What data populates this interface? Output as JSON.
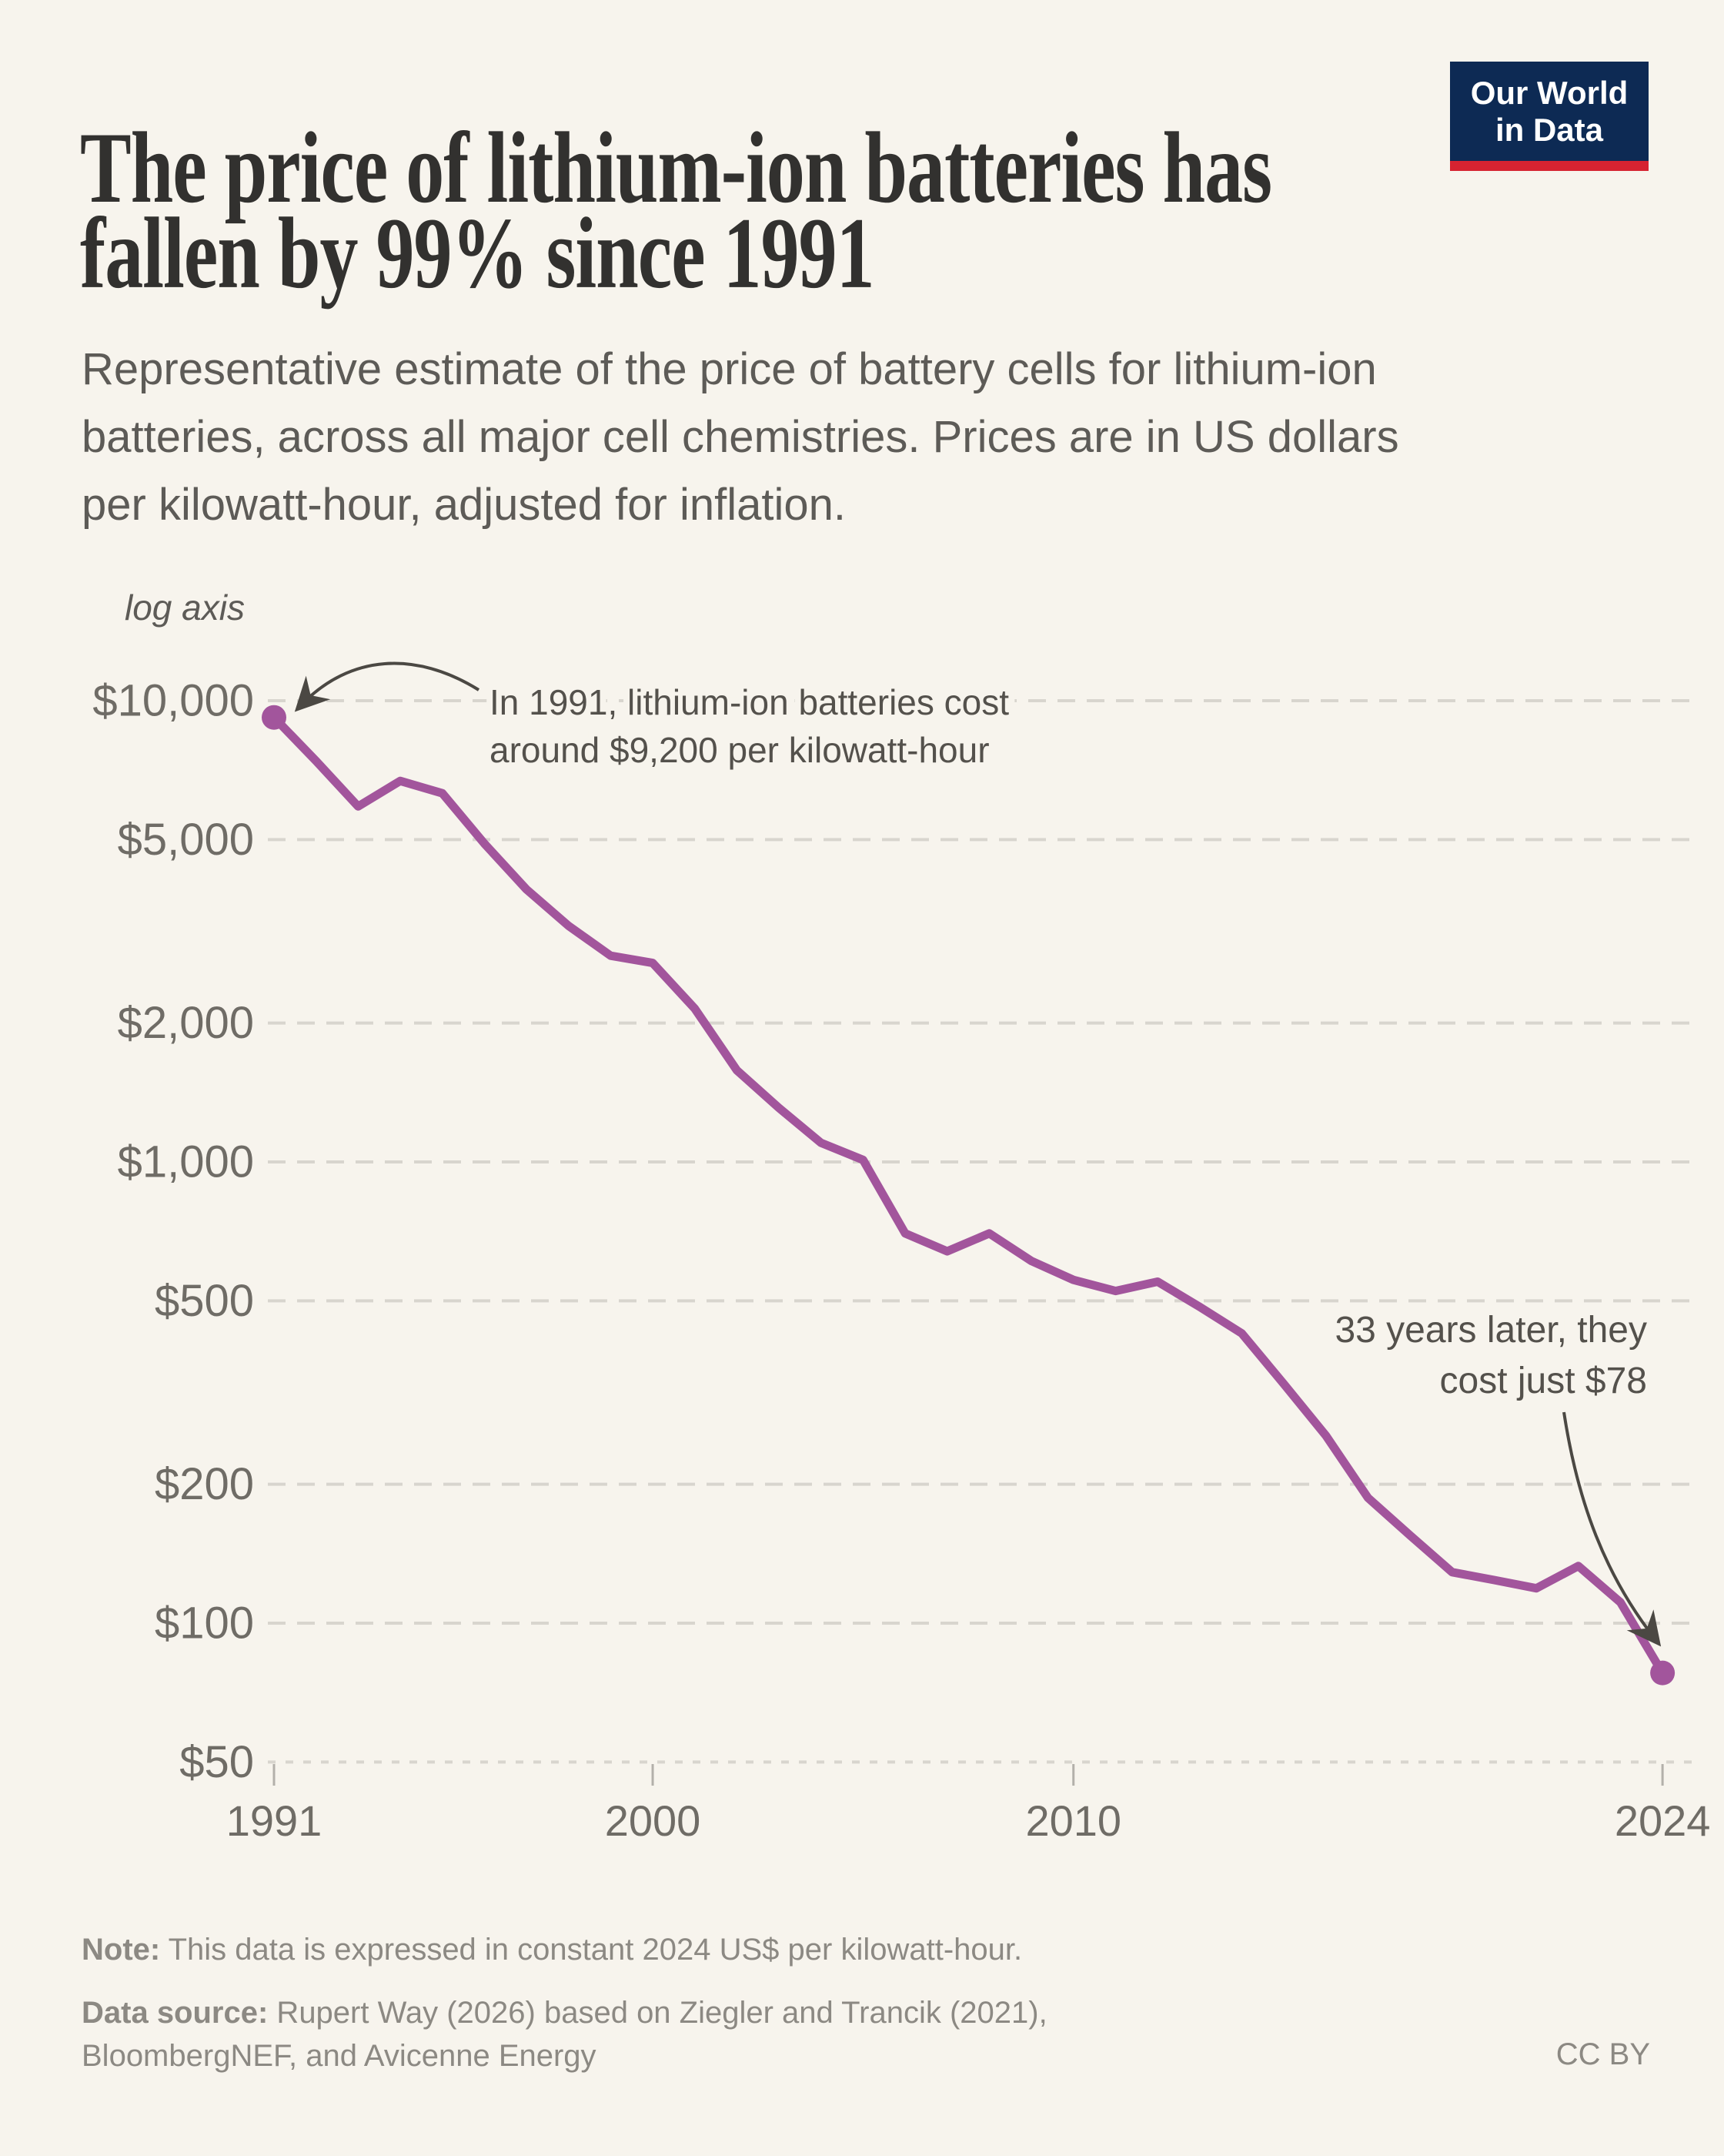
{
  "header": {
    "title": "The price of lithium-ion batteries has fallen by 99% since 1991",
    "subtitle": "Representative estimate of the price of battery cells for lithium-ion batteries, across all major cell chemistries. Prices are in US dollars per kilowatt-hour, adjusted for inflation."
  },
  "logo": {
    "line1": "Our World",
    "line2": "in Data",
    "bg_color": "#0D2A54",
    "stripe_color": "#D62331"
  },
  "chart_data": {
    "type": "line",
    "title": "The price of lithium-ion batteries has fallen by 99% since 1991",
    "ylabel": "US$ per kilowatt-hour",
    "xlabel": "",
    "log_scale": true,
    "axis_note": "log axis",
    "grid": true,
    "xlim": [
      1991,
      2024
    ],
    "ylim": [
      50,
      10000
    ],
    "x_ticks": [
      1991,
      2000,
      2010,
      2024
    ],
    "x_tick_labels": [
      "1991",
      "2000",
      "2010",
      "2024"
    ],
    "y_ticks": [
      10000,
      5000,
      2000,
      1000,
      500,
      200,
      100,
      50
    ],
    "y_tick_labels": [
      "$10,000",
      "$5,000",
      "$2,000",
      "$1,000",
      "$500",
      "$200",
      "$100",
      "$50"
    ],
    "series": [
      {
        "name": "Price of lithium-ion battery cells",
        "color": "#A2559C",
        "points": [
          [
            1991,
            9200
          ],
          [
            1992,
            7400
          ],
          [
            1993,
            5900
          ],
          [
            1994,
            6700
          ],
          [
            1995,
            6300
          ],
          [
            1996,
            4900
          ],
          [
            1997,
            3900
          ],
          [
            1998,
            3250
          ],
          [
            1999,
            2800
          ],
          [
            2000,
            2700
          ],
          [
            2001,
            2150
          ],
          [
            2002,
            1580
          ],
          [
            2003,
            1310
          ],
          [
            2004,
            1100
          ],
          [
            2005,
            1010
          ],
          [
            2006,
            700
          ],
          [
            2007,
            640
          ],
          [
            2008,
            700
          ],
          [
            2009,
            610
          ],
          [
            2010,
            555
          ],
          [
            2011,
            525
          ],
          [
            2012,
            550
          ],
          [
            2013,
            485
          ],
          [
            2014,
            425
          ],
          [
            2015,
            330
          ],
          [
            2016,
            255
          ],
          [
            2017,
            187
          ],
          [
            2018,
            155
          ],
          [
            2019,
            129
          ],
          [
            2020,
            124
          ],
          [
            2021,
            119
          ],
          [
            2022,
            133
          ],
          [
            2023,
            111
          ],
          [
            2024,
            78
          ]
        ]
      }
    ],
    "endpoint_markers": [
      {
        "year": 1991,
        "value": 9200
      },
      {
        "year": 2024,
        "value": 78
      }
    ],
    "annotations": [
      {
        "id": "start",
        "lines": [
          "In 1991, lithium-ion batteries cost",
          "around $9,200 per kilowatt-hour"
        ],
        "align": "left",
        "target_year": 1991,
        "target_value": 9200
      },
      {
        "id": "end",
        "lines": [
          "33 years later, they",
          "cost just $78"
        ],
        "align": "right",
        "target_year": 2024,
        "target_value": 78
      }
    ],
    "colors": {
      "line": "#A2559C",
      "grid": "#D8D5CE",
      "axis_text": "#6F6C66",
      "annotation_text": "#54514C",
      "arrow": "#4B4843",
      "tick": "#B3B0AA",
      "background": "#F7F4ED"
    }
  },
  "footer": {
    "note_label": "Note:",
    "note_text": " This data is expressed in constant 2024 US$ per kilowatt-hour.",
    "source_label": "Data source:",
    "source_text": " Rupert Way (2026) based on Ziegler and Trancik (2021), BloombergNEF, and Avicenne Energy",
    "license": "CC BY"
  }
}
